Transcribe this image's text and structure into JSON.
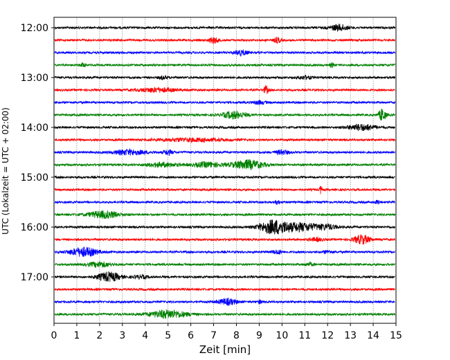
{
  "chart_data": {
    "type": "line",
    "title": "",
    "xlabel": "Zeit  [min]",
    "ylabel": "UTC (Lokalzeit = UTC + 02:00)",
    "xlim": [
      0,
      15
    ],
    "x_ticks": [
      "0",
      "1",
      "2",
      "3",
      "4",
      "5",
      "6",
      "7",
      "8",
      "9",
      "10",
      "11",
      "12",
      "13",
      "14",
      "15"
    ],
    "y_ticks": [
      "12:00",
      "13:00",
      "14:00",
      "15:00",
      "16:00",
      "17:00"
    ],
    "grid": "vertical dotted",
    "colors": [
      "#000000",
      "#ff0000",
      "#0000ff",
      "#008000"
    ],
    "traces": [
      {
        "start": "12:00",
        "color": "#000000",
        "events": [
          [
            12.5,
            0.6,
            0.4
          ]
        ]
      },
      {
        "start": "12:15",
        "color": "#ff0000",
        "events": [
          [
            7.0,
            0.6,
            0.2
          ],
          [
            9.8,
            0.5,
            0.15
          ]
        ]
      },
      {
        "start": "12:30",
        "color": "#0000ff",
        "events": [
          [
            8.2,
            0.5,
            0.3
          ]
        ]
      },
      {
        "start": "12:45",
        "color": "#008000",
        "events": [
          [
            1.3,
            0.4,
            0.1
          ],
          [
            12.2,
            0.4,
            0.1
          ]
        ]
      },
      {
        "start": "13:00",
        "color": "#000000",
        "events": [
          [
            4.8,
            0.3,
            0.2
          ],
          [
            11.0,
            0.3,
            0.3
          ]
        ]
      },
      {
        "start": "13:15",
        "color": "#ff0000",
        "events": [
          [
            4.5,
            0.4,
            0.8
          ],
          [
            9.3,
            0.8,
            0.1
          ]
        ]
      },
      {
        "start": "13:30",
        "color": "#0000ff",
        "events": [
          [
            9.0,
            0.3,
            0.3
          ]
        ]
      },
      {
        "start": "13:45",
        "color": "#008000",
        "events": [
          [
            7.9,
            0.7,
            0.5
          ],
          [
            14.4,
            1.3,
            0.15
          ]
        ]
      },
      {
        "start": "14:00",
        "color": "#000000",
        "events": [
          [
            13.5,
            0.6,
            0.6
          ]
        ]
      },
      {
        "start": "14:15",
        "color": "#ff0000",
        "events": [
          [
            6.0,
            0.3,
            1.5
          ]
        ]
      },
      {
        "start": "14:30",
        "color": "#0000ff",
        "events": [
          [
            3.3,
            0.5,
            0.7
          ],
          [
            5.0,
            0.5,
            0.2
          ],
          [
            10.0,
            0.4,
            0.3
          ]
        ]
      },
      {
        "start": "14:45",
        "color": "#008000",
        "events": [
          [
            4.7,
            0.4,
            0.7
          ],
          [
            6.7,
            0.5,
            0.6
          ],
          [
            8.5,
            0.9,
            0.7
          ]
        ]
      },
      {
        "start": "15:00",
        "color": "#000000",
        "events": []
      },
      {
        "start": "15:15",
        "color": "#ff0000",
        "events": [
          [
            11.7,
            0.8,
            0.05
          ]
        ]
      },
      {
        "start": "15:30",
        "color": "#0000ff",
        "events": [
          [
            9.8,
            0.4,
            0.1
          ],
          [
            14.2,
            0.4,
            0.1
          ]
        ]
      },
      {
        "start": "15:45",
        "color": "#008000",
        "events": [
          [
            2.2,
            0.7,
            0.7
          ]
        ]
      },
      {
        "start": "16:00",
        "color": "#000000",
        "events": [
          [
            9.6,
            1.3,
            0.6
          ],
          [
            10.8,
            0.8,
            0.9
          ],
          [
            12.0,
            0.4,
            0.4
          ]
        ]
      },
      {
        "start": "16:15",
        "color": "#ff0000",
        "events": [
          [
            11.5,
            0.3,
            0.3
          ],
          [
            13.5,
            0.9,
            0.35
          ]
        ]
      },
      {
        "start": "16:30",
        "color": "#0000ff",
        "events": [
          [
            1.3,
            0.9,
            0.6
          ],
          [
            9.8,
            0.4,
            0.2
          ],
          [
            12.0,
            0.3,
            0.2
          ]
        ]
      },
      {
        "start": "16:45",
        "color": "#008000",
        "events": [
          [
            2.0,
            0.5,
            0.5
          ],
          [
            11.2,
            0.3,
            0.2
          ]
        ]
      },
      {
        "start": "17:00",
        "color": "#000000",
        "events": [
          [
            2.4,
            0.9,
            0.5
          ],
          [
            3.8,
            0.3,
            0.3
          ]
        ]
      },
      {
        "start": "17:15",
        "color": "#ff0000",
        "events": []
      },
      {
        "start": "17:30",
        "color": "#0000ff",
        "events": [
          [
            7.6,
            0.6,
            0.4
          ],
          [
            9.0,
            0.3,
            0.1
          ]
        ]
      },
      {
        "start": "17:45",
        "color": "#008000",
        "events": [
          [
            5.0,
            0.8,
            0.8
          ]
        ]
      }
    ]
  }
}
